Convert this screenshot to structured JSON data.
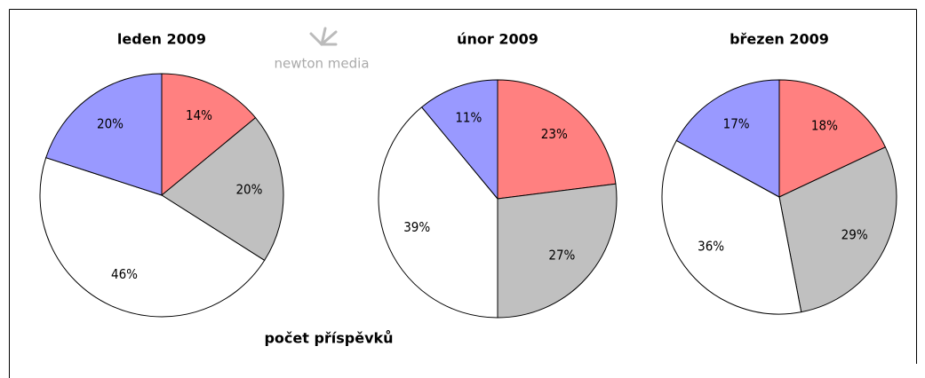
{
  "logo": "newton media",
  "caption": "počet příspěvků",
  "chart_data": [
    {
      "type": "pie",
      "title": "leden 2009",
      "values": [
        14,
        20,
        46,
        20
      ],
      "value_labels": [
        "14%",
        "20%",
        "46%",
        "20%"
      ],
      "colors": [
        "#ff8080",
        "#c0c0c0",
        "#ffffff",
        "#9999ff"
      ]
    },
    {
      "type": "pie",
      "title": "únor 2009",
      "values": [
        23,
        27,
        39,
        11
      ],
      "value_labels": [
        "23%",
        "27%",
        "39%",
        "11%"
      ],
      "colors": [
        "#ff8080",
        "#c0c0c0",
        "#ffffff",
        "#9999ff"
      ]
    },
    {
      "type": "pie",
      "title": "březen 2009",
      "values": [
        18,
        29,
        36,
        17
      ],
      "value_labels": [
        "18%",
        "29%",
        "36%",
        "17%"
      ],
      "colors": [
        "#ff8080",
        "#c0c0c0",
        "#ffffff",
        "#9999ff"
      ]
    }
  ]
}
